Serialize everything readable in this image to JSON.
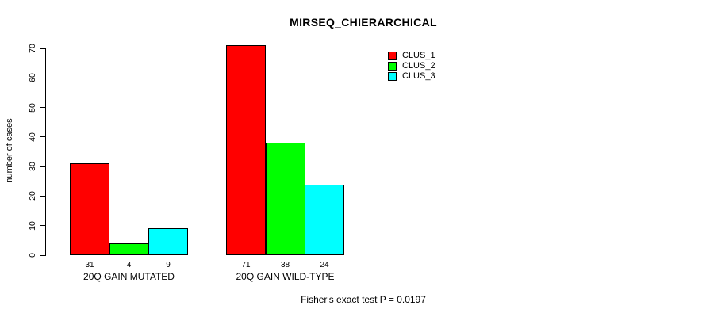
{
  "chart_data": {
    "type": "bar",
    "title": "MIRSEQ_CHIERARCHICAL",
    "ylabel": "number of cases",
    "xlabel": "",
    "footnote": "Fisher's exact test P = 0.0197",
    "categories": [
      "20Q GAIN MUTATED",
      "20Q GAIN WILD-TYPE"
    ],
    "series": [
      {
        "name": "CLUS_1",
        "color": "#ff0000",
        "values": [
          31,
          71
        ]
      },
      {
        "name": "CLUS_2",
        "color": "#00ff00",
        "values": [
          4,
          38
        ]
      },
      {
        "name": "CLUS_3",
        "color": "#00ffff",
        "values": [
          9,
          24
        ]
      }
    ],
    "yticks": [
      0,
      10,
      20,
      30,
      40,
      50,
      60,
      70
    ],
    "ylim": [
      0,
      70
    ],
    "value_labels_shown": true,
    "grid": false,
    "legend_position": "top-right",
    "background_color": "#ffffff",
    "axis_color": "#000000"
  }
}
